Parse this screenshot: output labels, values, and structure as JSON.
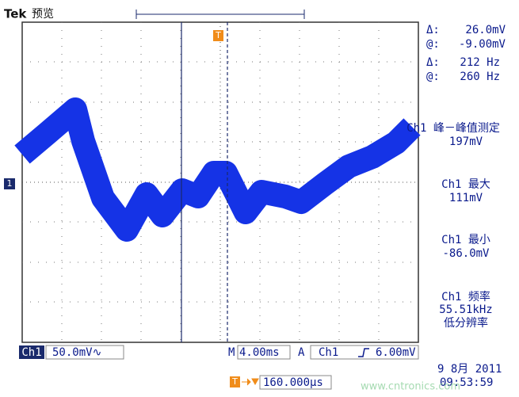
{
  "header": {
    "brand": "Tek",
    "mode": "预览",
    "trigger_marker": "T",
    "channel_marker": "1"
  },
  "cursors": [
    {
      "label": "Δ:",
      "value": "26.0mV"
    },
    {
      "label": "@:",
      "value": "-9.00mV"
    },
    {
      "label": "Δ:",
      "value": "212 Hz"
    },
    {
      "label": "@:",
      "value": "260 Hz"
    }
  ],
  "measurements": [
    {
      "name": "Ch1 峰－峰值测定",
      "value": "197mV"
    },
    {
      "name": "Ch1 最大",
      "value": "111mV"
    },
    {
      "name": "Ch1 最小",
      "value": "-86.0mV"
    },
    {
      "name": "Ch1 频率",
      "value": "55.51kHz",
      "note": "低分辨率"
    }
  ],
  "status": {
    "channel": "Ch1",
    "scale": "50.0mV∿",
    "time_label": "M",
    "time_scale": "4.00ms",
    "trigger_label": "A",
    "trigger_channel": "Ch1",
    "trigger_level": "6.00mV",
    "position_marker": "T",
    "position": "160.000µs",
    "date": "9 8月  2011",
    "time": "09:53:59"
  },
  "watermark": "www.cntronics.com"
}
